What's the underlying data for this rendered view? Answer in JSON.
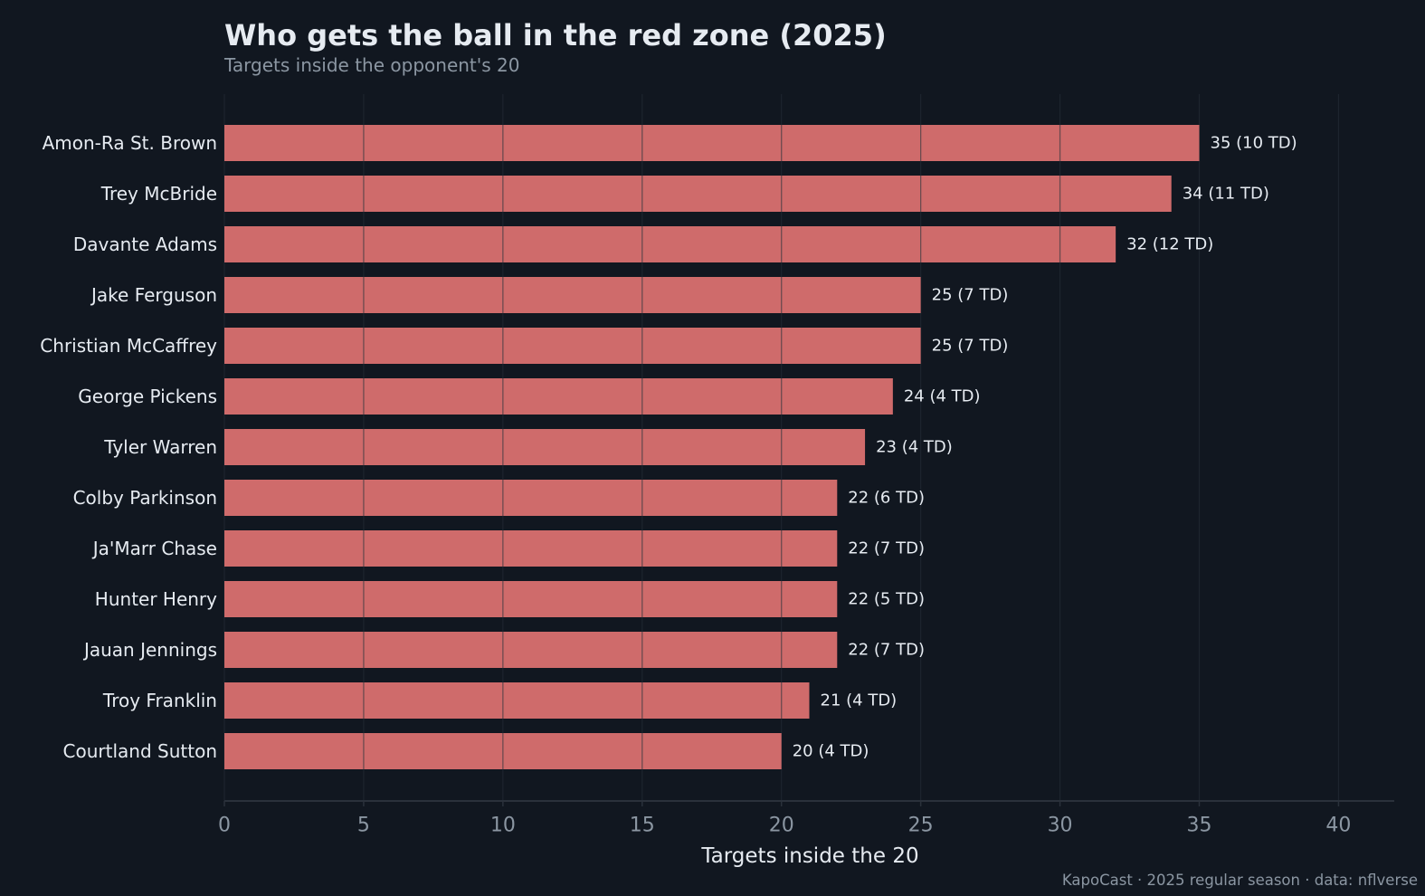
{
  "chart_data": {
    "type": "bar",
    "orientation": "horizontal",
    "title": "Who gets the ball in the red zone (2025)",
    "subtitle": "Targets inside the opponent's 20",
    "xlabel": "Targets inside the 20",
    "ylabel": "",
    "xlim": [
      0,
      42
    ],
    "x_ticks": [
      "0",
      "5",
      "10",
      "15",
      "20",
      "25",
      "30",
      "35",
      "40"
    ],
    "grid": "vertical",
    "legend": "none",
    "categories": [
      "Amon-Ra St. Brown",
      "Trey McBride",
      "Davante Adams",
      "Jake Ferguson",
      "Christian McCaffrey",
      "George Pickens",
      "Tyler Warren",
      "Colby Parkinson",
      "Ja'Marr Chase",
      "Hunter Henry",
      "Jauan Jennings",
      "Troy Franklin",
      "Courtland Sutton"
    ],
    "values": [
      35,
      34,
      32,
      25,
      25,
      24,
      23,
      22,
      22,
      22,
      22,
      21,
      20
    ],
    "touchdowns": [
      10,
      11,
      12,
      7,
      7,
      4,
      4,
      6,
      7,
      5,
      7,
      4,
      4
    ],
    "data_labels": [
      "35  (10 TD)",
      "34  (11 TD)",
      "32  (12 TD)",
      "25  (7 TD)",
      "25  (7 TD)",
      "24  (4 TD)",
      "23  (4 TD)",
      "22  (6 TD)",
      "22  (7 TD)",
      "22  (5 TD)",
      "22  (7 TD)",
      "21  (4 TD)",
      "20  (4 TD)"
    ],
    "colors": {
      "background": "#111720",
      "bar": "#cf6b6b",
      "grid": "#2a313b",
      "text": "#e6ebf1",
      "muted": "#8b96a2"
    }
  },
  "footer": {
    "credit": "KapoCast · 2025 regular season · data: nflverse"
  }
}
